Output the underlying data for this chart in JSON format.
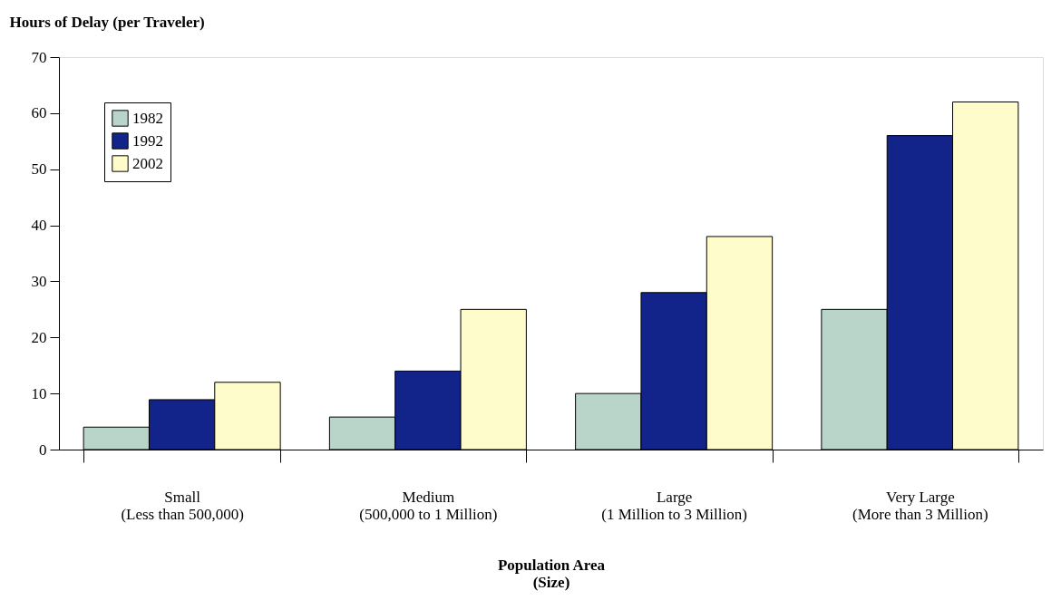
{
  "chart_data": {
    "type": "bar",
    "ylabel": "Hours of Delay (per Traveler)",
    "xlabel": "Population Area\n(Size)",
    "categories": [
      "Small\n(Less than 500,000)",
      "Medium\n(500,000 to 1 Million)",
      "Large\n(1 Million to 3 Million)",
      "Very Large\n(More than 3 Million)"
    ],
    "series": [
      {
        "name": "1982",
        "color": "#b9d5ca",
        "values": [
          4,
          5.8,
          10,
          25
        ]
      },
      {
        "name": "1992",
        "color": "#12238a",
        "values": [
          8.9,
          14,
          28,
          56
        ]
      },
      {
        "name": "2002",
        "color": "#fffccc",
        "values": [
          12,
          25,
          38,
          62
        ]
      }
    ],
    "ylim": [
      0,
      70
    ],
    "yticks": [
      0,
      10,
      20,
      30,
      40,
      50,
      60,
      70
    ],
    "grid": false,
    "legend": "top left"
  }
}
